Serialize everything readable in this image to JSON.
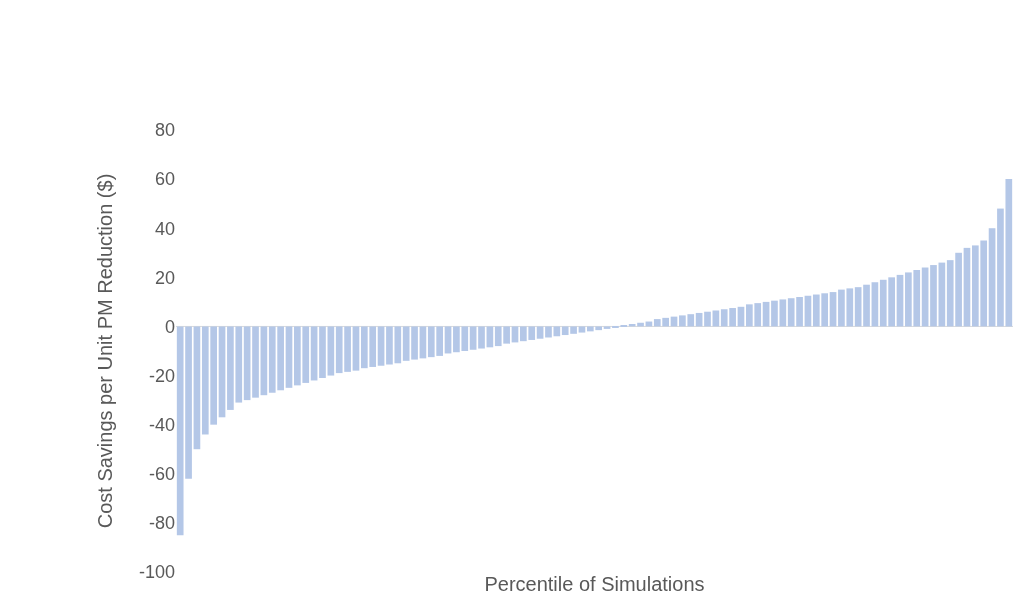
{
  "chart_data": {
    "type": "bar",
    "xlabel": "Percentile of Simulations",
    "ylabel": "Cost Savings per Unit PM Reduction ($)",
    "categories": [
      null,
      null,
      null,
      null,
      null,
      null,
      null,
      null,
      null,
      null,
      null,
      null,
      null,
      null,
      null,
      null,
      null,
      null,
      null,
      null,
      null,
      null,
      null,
      null,
      null,
      null,
      null,
      null,
      null,
      null,
      null,
      null,
      null,
      null,
      null,
      null,
      null,
      null,
      null,
      null,
      null,
      null,
      null,
      null,
      null,
      null,
      null,
      null,
      null,
      null,
      null,
      null,
      null,
      null,
      null,
      null,
      null,
      null,
      null,
      null,
      null,
      null,
      null,
      null,
      null,
      null,
      null,
      null,
      null,
      null,
      null,
      null,
      null,
      null,
      null,
      null,
      null,
      null,
      null,
      null,
      null,
      null,
      null,
      null,
      null,
      null,
      null,
      null,
      null,
      null,
      null,
      null,
      null,
      null,
      null,
      null,
      null,
      null,
      null,
      null
    ],
    "values": [
      -85,
      -62,
      -50,
      -44,
      -40,
      -37,
      -34,
      -31,
      -30,
      -29,
      -28,
      -27,
      -26,
      -25,
      -24,
      -23,
      -22,
      -21,
      -20,
      -19,
      -18.5,
      -18,
      -17,
      -16.5,
      -16,
      -15.5,
      -15,
      -14,
      -13.5,
      -13,
      -12.5,
      -12,
      -11,
      -10.5,
      -10,
      -9.5,
      -9,
      -8.5,
      -8,
      -7,
      -6.5,
      -6,
      -5.5,
      -5,
      -4.5,
      -4,
      -3.5,
      -3,
      -2.5,
      -2,
      -1.5,
      -1,
      -0.5,
      0.5,
      1,
      1.5,
      2,
      3,
      3.5,
      4,
      4.5,
      5,
      5.5,
      6,
      6.5,
      7,
      7.5,
      8,
      9,
      9.5,
      10,
      10.5,
      11,
      11.5,
      12,
      12.5,
      13,
      13.5,
      14,
      15,
      15.5,
      16,
      17,
      18,
      19,
      20,
      21,
      22,
      23,
      24,
      25,
      26,
      27,
      30,
      32,
      33,
      35,
      40,
      48,
      60
    ],
    "color": "#b4c7e7",
    "ylim": [
      -100,
      80
    ],
    "yticks": [
      -100,
      -80,
      -60,
      -40,
      -20,
      0,
      20,
      40,
      60,
      80
    ],
    "ref_lines": [
      {
        "axis": "y",
        "value": 0,
        "color": "#d9d9d9"
      }
    ],
    "tick_labels": "y",
    "legend": false
  }
}
